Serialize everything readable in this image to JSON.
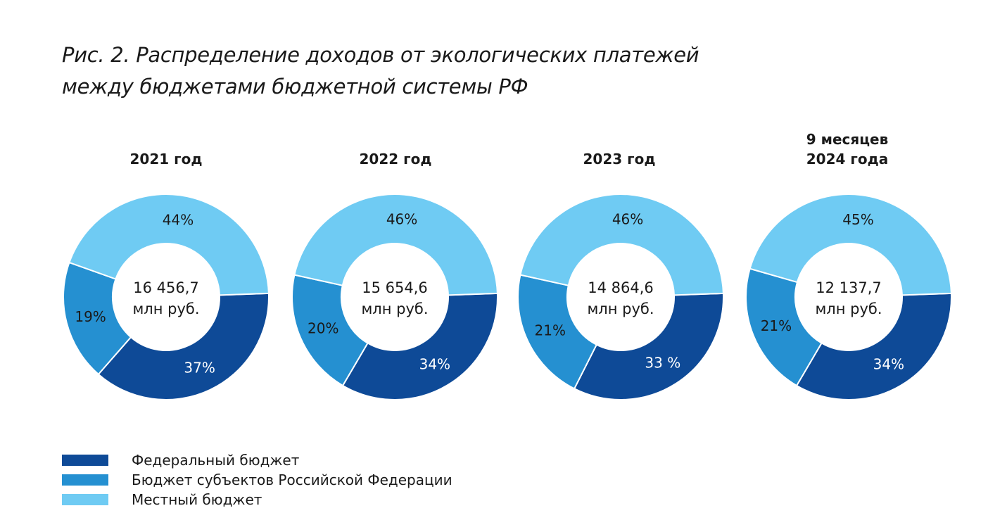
{
  "title": {
    "line1": "Рис. 2. Распределение доходов от экологических платежей",
    "line2": "между бюджетами бюджетной системы РФ"
  },
  "colors": {
    "federal": "#0e4a97",
    "regional": "#2590d1",
    "local": "#6fcbf3"
  },
  "legend": [
    {
      "label": "Федеральный бюджет",
      "color": "#0e4a97"
    },
    {
      "label": "Бюджет субъектов Российской Федерации",
      "color": "#2590d1"
    },
    {
      "label": "Местный бюджет",
      "color": "#6fcbf3"
    }
  ],
  "chart_data": [
    {
      "type": "pie",
      "title_lines": [
        "2021 год"
      ],
      "center_lines": [
        "16 456,7",
        "млн руб."
      ],
      "slices": [
        {
          "series": "Федеральный бюджет",
          "value": 37,
          "label": "37%"
        },
        {
          "series": "Бюджет субъектов Российской Федерации",
          "value": 19,
          "label": "19%"
        },
        {
          "series": "Местный бюджет",
          "value": 44,
          "label": "44%"
        }
      ]
    },
    {
      "type": "pie",
      "title_lines": [
        "2022 год"
      ],
      "center_lines": [
        "15 654,6",
        "млн руб."
      ],
      "slices": [
        {
          "series": "Федеральный бюджет",
          "value": 34,
          "label": "34%"
        },
        {
          "series": "Бюджет субъектов Российской Федерации",
          "value": 20,
          "label": "20%"
        },
        {
          "series": "Местный бюджет",
          "value": 46,
          "label": "46%"
        }
      ]
    },
    {
      "type": "pie",
      "title_lines": [
        "2023 год"
      ],
      "center_lines": [
        "14 864,6",
        "млн руб."
      ],
      "slices": [
        {
          "series": "Федеральный бюджет",
          "value": 33,
          "label": "33 %"
        },
        {
          "series": "Бюджет субъектов Российской Федерации",
          "value": 21,
          "label": "21%"
        },
        {
          "series": "Местный бюджет",
          "value": 46,
          "label": "46%"
        }
      ]
    },
    {
      "type": "pie",
      "title_lines": [
        "9 месяцев",
        "2024 года"
      ],
      "center_lines": [
        "12 137,7",
        "млн руб."
      ],
      "slices": [
        {
          "series": "Федеральный бюджет",
          "value": 34,
          "label": "34%"
        },
        {
          "series": "Бюджет субъектов Российской Федерации",
          "value": 21,
          "label": "21%"
        },
        {
          "series": "Местный бюджет",
          "value": 45,
          "label": "45%"
        }
      ]
    }
  ]
}
